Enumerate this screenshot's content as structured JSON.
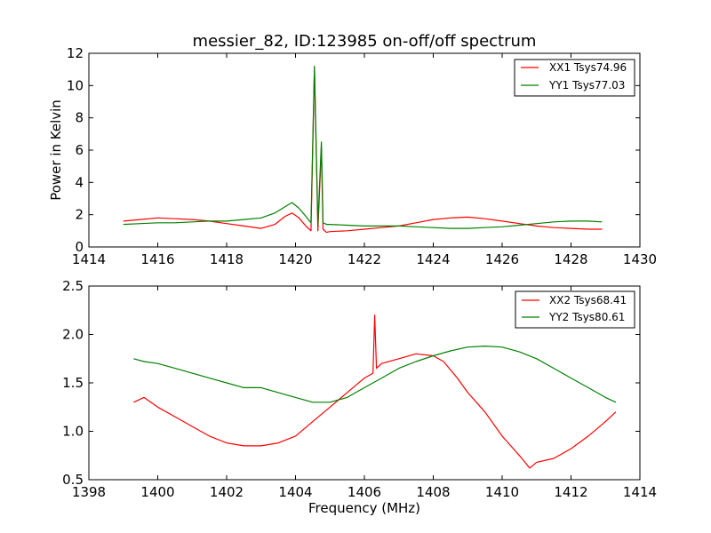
{
  "chart_data": [
    {
      "type": "line",
      "title": "messier_82, ID:123985 on-off/off spectrum",
      "xlabel": "",
      "ylabel": "Power in Kelvin",
      "xlim": [
        1414,
        1430
      ],
      "ylim": [
        0,
        12
      ],
      "xticks": [
        "1414",
        "1416",
        "1418",
        "1420",
        "1422",
        "1424",
        "1426",
        "1428",
        "1430"
      ],
      "yticks": [
        "0",
        "2",
        "4",
        "6",
        "8",
        "10",
        "12"
      ],
      "legend_position": "top-right",
      "series": [
        {
          "name": "XX1 Tsys74.96",
          "color": "#ff0000",
          "x": [
            1415.0,
            1415.5,
            1416.0,
            1416.5,
            1417.0,
            1417.5,
            1418.0,
            1418.5,
            1419.0,
            1419.4,
            1419.7,
            1419.9,
            1420.1,
            1420.3,
            1420.45,
            1420.55,
            1420.65,
            1420.75,
            1420.8,
            1420.9,
            1421.0,
            1421.5,
            1422.0,
            1422.5,
            1423.0,
            1423.5,
            1424.0,
            1424.5,
            1425.0,
            1425.5,
            1426.0,
            1426.5,
            1427.0,
            1427.5,
            1428.0,
            1428.5,
            1428.9
          ],
          "values": [
            1.6,
            1.7,
            1.8,
            1.75,
            1.7,
            1.6,
            1.45,
            1.3,
            1.15,
            1.4,
            1.9,
            2.1,
            1.8,
            1.3,
            1.0,
            11.1,
            1.0,
            6.2,
            1.1,
            0.9,
            0.95,
            1.0,
            1.1,
            1.2,
            1.3,
            1.5,
            1.7,
            1.8,
            1.85,
            1.75,
            1.6,
            1.45,
            1.3,
            1.2,
            1.15,
            1.1,
            1.1
          ]
        },
        {
          "name": "YY1 Tsys77.03",
          "color": "#008000",
          "x": [
            1415.0,
            1415.5,
            1416.0,
            1416.5,
            1417.0,
            1417.5,
            1418.0,
            1418.5,
            1419.0,
            1419.4,
            1419.7,
            1419.9,
            1420.1,
            1420.3,
            1420.45,
            1420.55,
            1420.65,
            1420.75,
            1420.8,
            1420.9,
            1421.0,
            1421.5,
            1422.0,
            1422.5,
            1423.0,
            1423.5,
            1424.0,
            1424.5,
            1425.0,
            1425.5,
            1426.0,
            1426.5,
            1427.0,
            1427.5,
            1428.0,
            1428.5,
            1428.9
          ],
          "values": [
            1.4,
            1.45,
            1.5,
            1.5,
            1.55,
            1.6,
            1.6,
            1.7,
            1.8,
            2.1,
            2.5,
            2.75,
            2.4,
            1.9,
            1.5,
            11.2,
            1.4,
            6.5,
            1.5,
            1.4,
            1.4,
            1.35,
            1.3,
            1.3,
            1.3,
            1.25,
            1.2,
            1.15,
            1.15,
            1.2,
            1.25,
            1.35,
            1.45,
            1.55,
            1.6,
            1.6,
            1.55
          ]
        }
      ]
    },
    {
      "type": "line",
      "title": "",
      "xlabel": "Frequency (MHz)",
      "ylabel": "",
      "xlim": [
        1398,
        1414
      ],
      "ylim": [
        0.5,
        2.5
      ],
      "xticks": [
        "1398",
        "1400",
        "1402",
        "1404",
        "1406",
        "1408",
        "1410",
        "1412",
        "1414"
      ],
      "yticks": [
        "0.5",
        "1.0",
        "1.5",
        "2.0",
        "2.5"
      ],
      "legend_position": "top-right",
      "series": [
        {
          "name": "XX2 Tsys68.41",
          "color": "#ff0000",
          "x": [
            1399.3,
            1399.6,
            1400.0,
            1400.5,
            1401.0,
            1401.5,
            1402.0,
            1402.5,
            1403.0,
            1403.5,
            1404.0,
            1404.5,
            1405.0,
            1405.5,
            1406.0,
            1406.25,
            1406.3,
            1406.35,
            1406.5,
            1407.0,
            1407.5,
            1408.0,
            1408.3,
            1408.7,
            1409.0,
            1409.5,
            1410.0,
            1410.5,
            1410.8,
            1411.0,
            1411.5,
            1412.0,
            1412.5,
            1413.0,
            1413.3
          ],
          "values": [
            1.3,
            1.35,
            1.25,
            1.15,
            1.05,
            0.95,
            0.88,
            0.85,
            0.85,
            0.88,
            0.95,
            1.1,
            1.25,
            1.4,
            1.55,
            1.6,
            2.2,
            1.65,
            1.7,
            1.75,
            1.8,
            1.78,
            1.72,
            1.55,
            1.4,
            1.2,
            0.95,
            0.75,
            0.62,
            0.68,
            0.72,
            0.82,
            0.95,
            1.1,
            1.2
          ]
        },
        {
          "name": "YY2 Tsys80.61",
          "color": "#008000",
          "x": [
            1399.3,
            1399.6,
            1400.0,
            1400.5,
            1401.0,
            1401.5,
            1402.0,
            1402.5,
            1403.0,
            1403.5,
            1404.0,
            1404.5,
            1405.0,
            1405.5,
            1406.0,
            1406.5,
            1407.0,
            1407.5,
            1408.0,
            1408.5,
            1409.0,
            1409.5,
            1410.0,
            1410.5,
            1411.0,
            1411.5,
            1412.0,
            1412.5,
            1413.0,
            1413.3
          ],
          "values": [
            1.75,
            1.72,
            1.7,
            1.65,
            1.6,
            1.55,
            1.5,
            1.45,
            1.45,
            1.4,
            1.35,
            1.3,
            1.3,
            1.35,
            1.45,
            1.55,
            1.65,
            1.72,
            1.78,
            1.83,
            1.87,
            1.88,
            1.87,
            1.82,
            1.75,
            1.65,
            1.55,
            1.45,
            1.35,
            1.3
          ]
        }
      ]
    }
  ]
}
